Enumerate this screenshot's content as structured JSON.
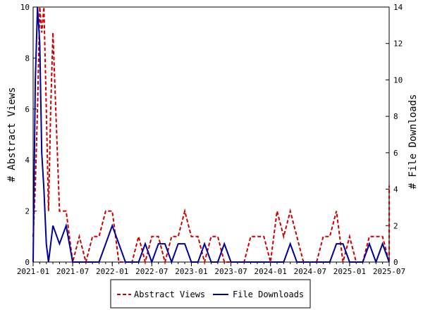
{
  "chart_data": {
    "type": "line",
    "x_dates": [
      "2021-01",
      "2021-02",
      "2021-03",
      "2021-04",
      "2021-05",
      "2021-06",
      "2021-07",
      "2021-08",
      "2021-09",
      "2021-10",
      "2021-11",
      "2021-12",
      "2022-01",
      "2022-02",
      "2022-03",
      "2022-04",
      "2022-05",
      "2022-06",
      "2022-07",
      "2022-08",
      "2022-09",
      "2022-10",
      "2022-11",
      "2022-12",
      "2023-01",
      "2023-02",
      "2023-03",
      "2023-04",
      "2023-05",
      "2023-06",
      "2023-07",
      "2023-08",
      "2023-09",
      "2023-10",
      "2023-11",
      "2023-12",
      "2024-01",
      "2024-02",
      "2024-03",
      "2024-04",
      "2024-05",
      "2024-06",
      "2024-07",
      "2024-08",
      "2024-09",
      "2024-10",
      "2024-11",
      "2024-12",
      "2025-01",
      "2025-02",
      "2025-03",
      "2025-04",
      "2025-05",
      "2025-06",
      "2025-07"
    ],
    "abstract_views_points": [
      [
        "2021-01",
        1
      ],
      [
        "2021-01-11",
        3
      ],
      [
        "2021-01-21",
        6
      ],
      [
        "2021-02",
        10
      ],
      [
        "2021-02-10",
        9
      ],
      [
        "2021-02-20",
        10
      ],
      [
        "2021-03",
        6
      ],
      [
        "2021-03-11",
        2
      ],
      [
        "2021-03-21",
        6
      ],
      [
        "2021-04",
        9
      ],
      [
        "2021-05",
        2
      ],
      [
        "2021-06",
        2
      ],
      [
        "2021-07",
        0
      ],
      [
        "2021-08",
        1
      ],
      [
        "2021-09",
        0
      ],
      [
        "2021-10",
        1
      ],
      [
        "2021-11",
        1
      ],
      [
        "2021-12",
        2
      ],
      [
        "2022-01",
        2
      ],
      [
        "2022-02",
        0
      ],
      [
        "2022-03",
        0
      ],
      [
        "2022-04",
        0
      ],
      [
        "2022-05",
        1
      ],
      [
        "2022-06",
        0
      ],
      [
        "2022-07",
        1
      ],
      [
        "2022-08",
        1
      ],
      [
        "2022-09",
        0
      ],
      [
        "2022-10",
        1
      ],
      [
        "2022-11",
        1
      ],
      [
        "2022-12",
        2
      ],
      [
        "2023-01",
        1
      ],
      [
        "2023-02",
        1
      ],
      [
        "2023-03",
        0
      ],
      [
        "2023-04",
        1
      ],
      [
        "2023-05",
        1
      ],
      [
        "2023-06",
        0
      ],
      [
        "2023-07",
        0
      ],
      [
        "2023-08",
        0
      ],
      [
        "2023-09",
        0
      ],
      [
        "2023-10",
        1
      ],
      [
        "2023-11",
        1
      ],
      [
        "2023-12",
        1
      ],
      [
        "2024-01",
        0
      ],
      [
        "2024-02",
        2
      ],
      [
        "2024-03",
        1
      ],
      [
        "2024-04",
        2
      ],
      [
        "2024-05",
        1
      ],
      [
        "2024-06",
        0
      ],
      [
        "2024-07",
        0
      ],
      [
        "2024-08",
        0
      ],
      [
        "2024-09",
        1
      ],
      [
        "2024-10",
        1
      ],
      [
        "2024-11",
        2
      ],
      [
        "2024-12",
        0
      ],
      [
        "2025-01",
        1
      ],
      [
        "2025-02",
        0
      ],
      [
        "2025-03",
        0
      ],
      [
        "2025-04",
        1
      ],
      [
        "2025-05",
        1
      ],
      [
        "2025-06",
        1
      ],
      [
        "2025-07",
        0
      ],
      [
        "2025-08",
        3
      ]
    ],
    "file_downloads_points": [
      [
        "2021-01",
        0
      ],
      [
        "2021-01-11",
        10
      ],
      [
        "2021-01-21",
        14
      ],
      [
        "2021-02",
        12
      ],
      [
        "2021-02-10",
        6
      ],
      [
        "2021-02-20",
        4
      ],
      [
        "2021-03",
        1
      ],
      [
        "2021-03-11",
        0
      ],
      [
        "2021-04",
        2
      ],
      [
        "2021-05",
        1
      ],
      [
        "2021-06",
        2
      ],
      [
        "2021-07",
        0
      ],
      [
        "2021-08",
        0
      ],
      [
        "2021-09",
        0
      ],
      [
        "2021-10",
        0
      ],
      [
        "2021-11",
        0
      ],
      [
        "2021-12",
        1
      ],
      [
        "2022-01",
        2
      ],
      [
        "2022-02",
        1
      ],
      [
        "2022-03",
        0
      ],
      [
        "2022-04",
        0
      ],
      [
        "2022-05",
        0
      ],
      [
        "2022-06",
        1
      ],
      [
        "2022-07",
        0
      ],
      [
        "2022-08",
        1
      ],
      [
        "2022-09",
        1
      ],
      [
        "2022-10",
        0
      ],
      [
        "2022-11",
        1
      ],
      [
        "2022-12",
        1
      ],
      [
        "2023-01",
        0
      ],
      [
        "2023-02",
        0
      ],
      [
        "2023-03",
        1
      ],
      [
        "2023-04",
        0
      ],
      [
        "2023-05",
        0
      ],
      [
        "2023-06",
        1
      ],
      [
        "2023-07",
        0
      ],
      [
        "2023-08",
        0
      ],
      [
        "2023-09",
        0
      ],
      [
        "2023-10",
        0
      ],
      [
        "2023-11",
        0
      ],
      [
        "2023-12",
        0
      ],
      [
        "2024-01",
        0
      ],
      [
        "2024-02",
        0
      ],
      [
        "2024-03",
        0
      ],
      [
        "2024-04",
        1
      ],
      [
        "2024-05",
        0
      ],
      [
        "2024-06",
        0
      ],
      [
        "2024-07",
        0
      ],
      [
        "2024-08",
        0
      ],
      [
        "2024-09",
        0
      ],
      [
        "2024-10",
        0
      ],
      [
        "2024-11",
        1
      ],
      [
        "2024-12",
        1
      ],
      [
        "2025-01",
        0
      ],
      [
        "2025-02",
        0
      ],
      [
        "2025-03",
        0
      ],
      [
        "2025-04",
        1
      ],
      [
        "2025-05",
        0
      ],
      [
        "2025-06",
        1
      ],
      [
        "2025-07",
        0
      ]
    ],
    "x_ticks": [
      "2021-01",
      "2021-07",
      "2022-01",
      "2022-07",
      "2023-01",
      "2023-07",
      "2024-01",
      "2024-07",
      "2025-01",
      "2025-07"
    ],
    "x_range": [
      "2021-01",
      "2025-07"
    ],
    "y_left": {
      "label": "# Abstract Views",
      "ylim": [
        0,
        10
      ],
      "ticks": [
        "0",
        "2",
        "4",
        "6",
        "8",
        "10"
      ]
    },
    "y_right": {
      "label": "# File Downloads",
      "ylim": [
        0,
        14
      ],
      "ticks": [
        "0",
        "2",
        "4",
        "6",
        "8",
        "10",
        "12",
        "14"
      ]
    },
    "legend": {
      "placement": "bottom-center",
      "items": [
        {
          "name": "Abstract Views",
          "color": "#cc0000",
          "style": "dashed"
        },
        {
          "name": "File Downloads",
          "color": "#000099",
          "style": "solid"
        }
      ]
    },
    "grid": false
  }
}
